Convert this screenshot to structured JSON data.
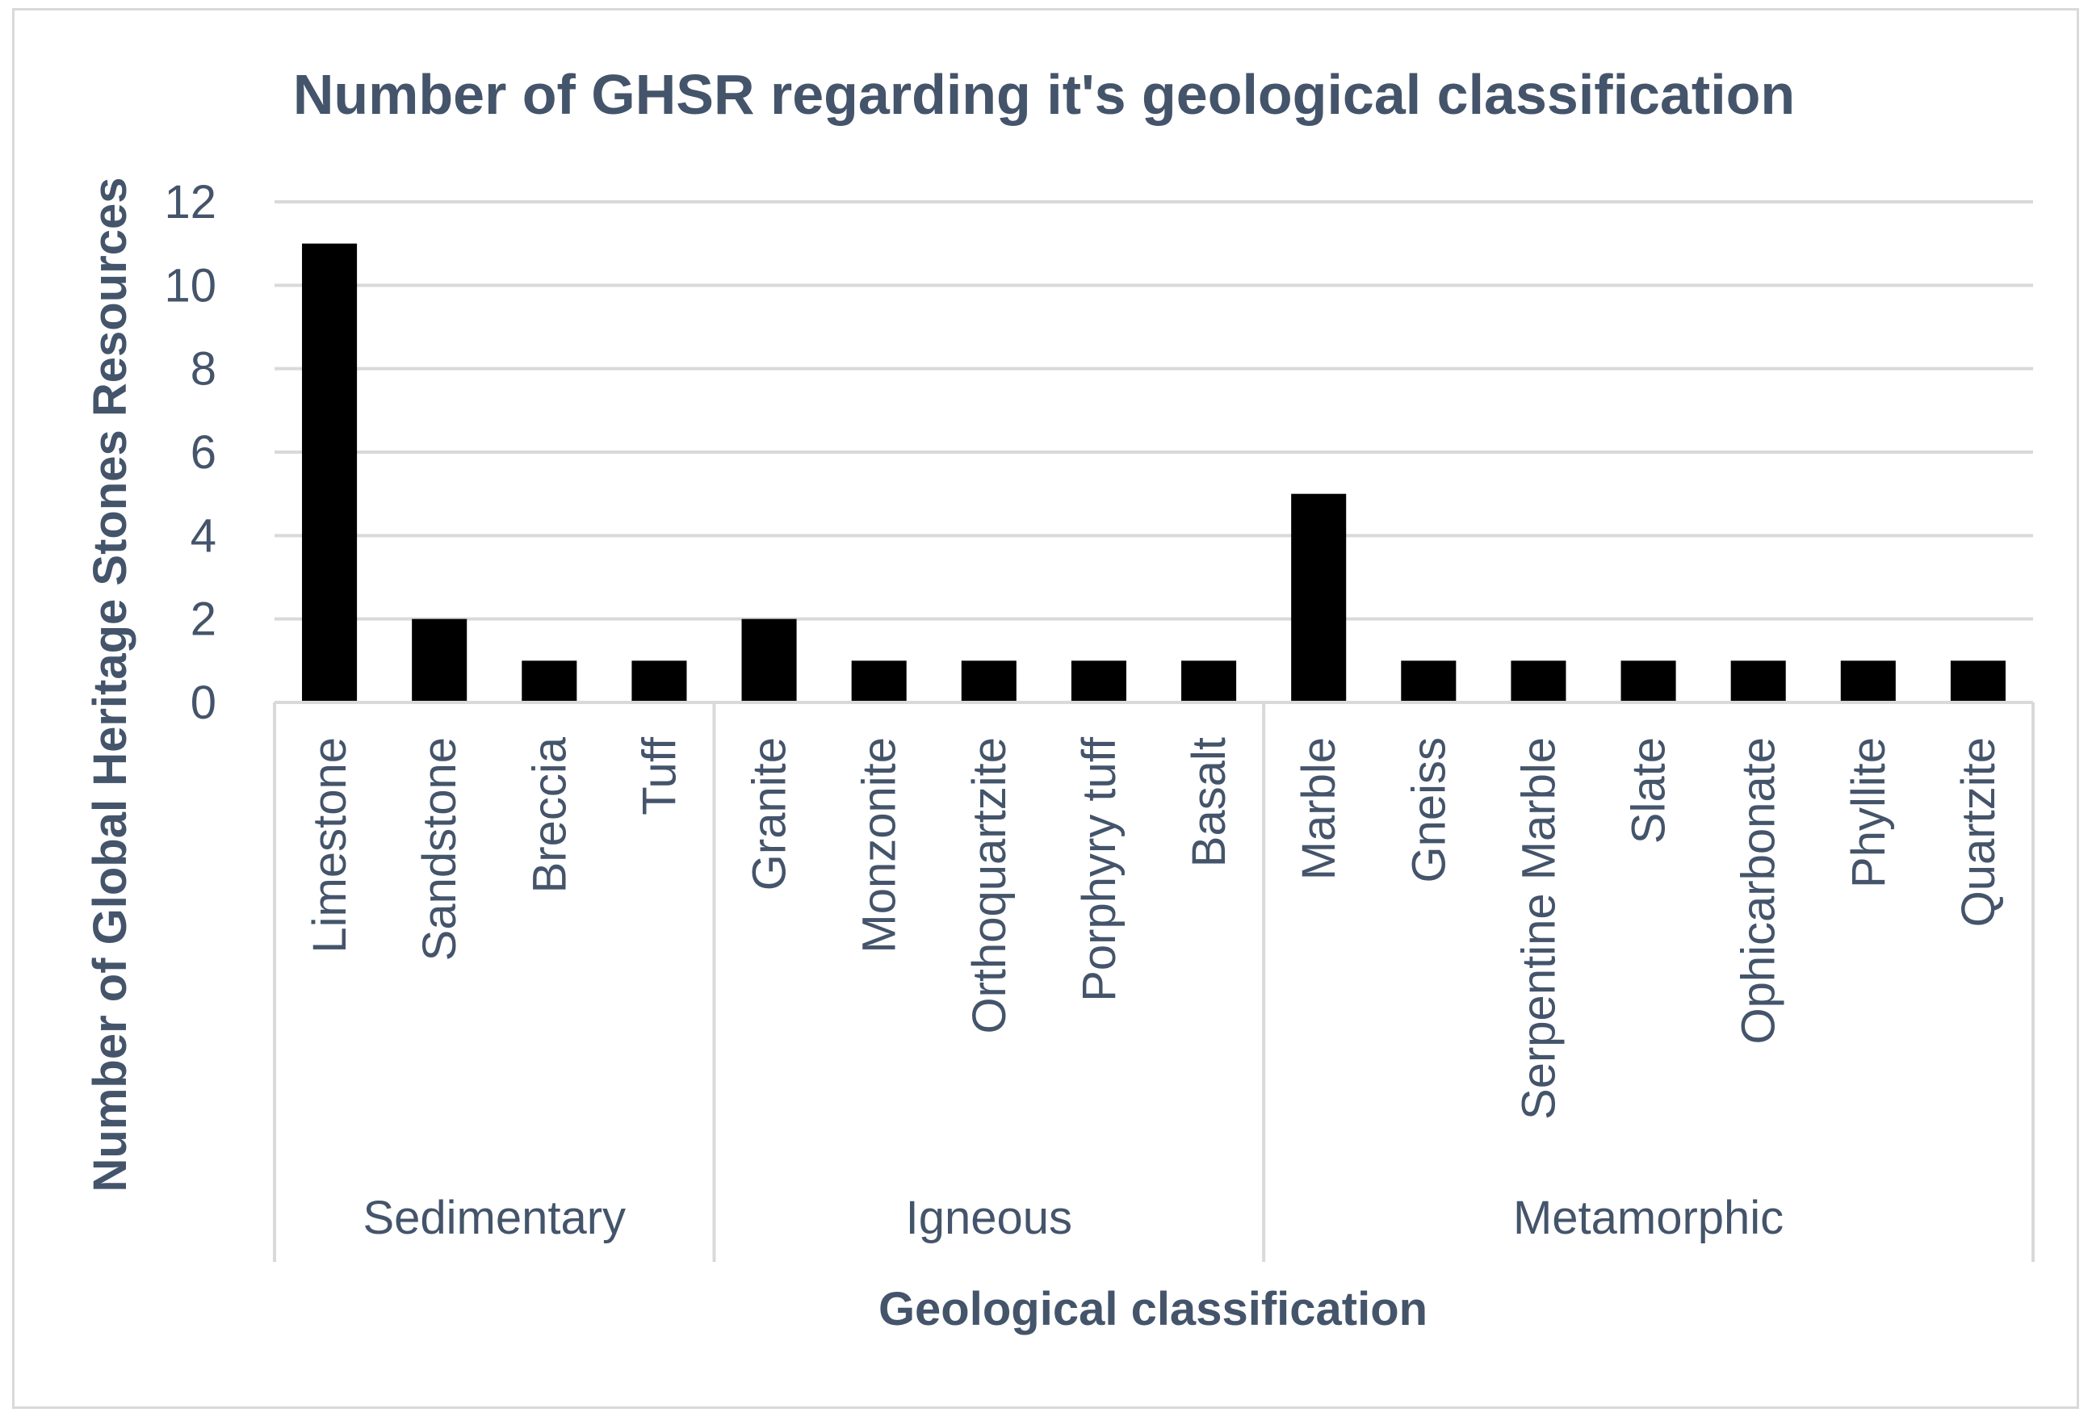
{
  "chart_data": {
    "type": "bar",
    "title": "Number of GHSR regarding it's geological classification",
    "xlabel": "Geological classification",
    "ylabel": "Number of Global Heritage Stones Resources",
    "ylim": [
      0,
      12
    ],
    "yticks": [
      0,
      2,
      4,
      6,
      8,
      10,
      12
    ],
    "grid": true,
    "legend": "none",
    "bar_color": "#000000",
    "grid_color": "#d9d9d9",
    "text_color": "#44546a",
    "categories": [
      "Limestone",
      "Sandstone",
      "Breccia",
      "Tuff",
      "Granite",
      "Monzonite",
      "Orthoquartzite",
      "Porphyry tuff",
      "Basalt",
      "Marble",
      "Gneiss",
      "Serpentine Marble",
      "Slate",
      "Ophicarbonate",
      "Phyllite",
      "Quartzite"
    ],
    "values": [
      11,
      2,
      1,
      1,
      2,
      1,
      1,
      1,
      1,
      5,
      1,
      1,
      1,
      1,
      1,
      1
    ],
    "groups": [
      {
        "label": "Sedimentary",
        "count": 4
      },
      {
        "label": "Igneous",
        "count": 5
      },
      {
        "label": "Metamorphic",
        "count": 7
      }
    ]
  }
}
